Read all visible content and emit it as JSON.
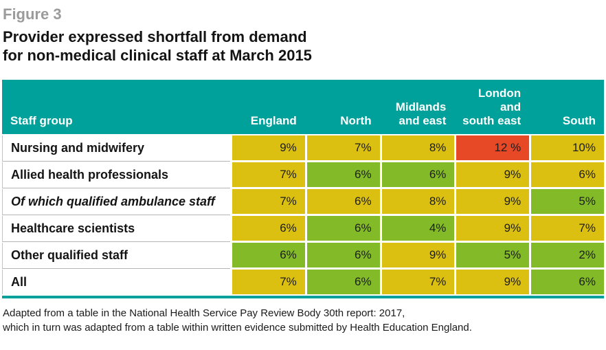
{
  "figure_label": "Figure 3",
  "title": {
    "line1": "Provider expressed shortfall from demand",
    "line2": "for non-medical clinical staff at March 2015"
  },
  "palette": {
    "teal": "#00A19A",
    "yellow": "#DBC011",
    "green": "#82BB27",
    "red": "#E74826",
    "header_text": "#FFFFFF",
    "figure_label_gray": "#9B9B9B"
  },
  "table": {
    "header": {
      "staff_group": "Staff group",
      "columns": [
        "England",
        "North",
        "Midlands\nand east",
        "London\nand\nsouth east",
        "South"
      ]
    },
    "rows": [
      {
        "label": "Nursing and midwifery",
        "italic": false,
        "cells": [
          {
            "value": "9%",
            "color": "yellow"
          },
          {
            "value": "7%",
            "color": "yellow"
          },
          {
            "value": "8%",
            "color": "yellow"
          },
          {
            "value": "12 %",
            "color": "red"
          },
          {
            "value": "10%",
            "color": "yellow"
          }
        ]
      },
      {
        "label": "Allied health professionals",
        "italic": false,
        "cells": [
          {
            "value": "7%",
            "color": "yellow"
          },
          {
            "value": "6%",
            "color": "green"
          },
          {
            "value": "6%",
            "color": "green"
          },
          {
            "value": "9%",
            "color": "yellow"
          },
          {
            "value": "6%",
            "color": "yellow"
          }
        ]
      },
      {
        "label": "Of which qualified ambulance staff",
        "italic": true,
        "cells": [
          {
            "value": "7%",
            "color": "yellow"
          },
          {
            "value": "6%",
            "color": "yellow"
          },
          {
            "value": "8%",
            "color": "yellow"
          },
          {
            "value": "9%",
            "color": "yellow"
          },
          {
            "value": "5%",
            "color": "green"
          }
        ]
      },
      {
        "label": "Healthcare scientists",
        "italic": false,
        "cells": [
          {
            "value": "6%",
            "color": "yellow"
          },
          {
            "value": "6%",
            "color": "green"
          },
          {
            "value": "4%",
            "color": "green"
          },
          {
            "value": "9%",
            "color": "yellow"
          },
          {
            "value": "7%",
            "color": "yellow"
          }
        ]
      },
      {
        "label": "Other qualified staff",
        "italic": false,
        "cells": [
          {
            "value": "6%",
            "color": "green"
          },
          {
            "value": "6%",
            "color": "green"
          },
          {
            "value": "9%",
            "color": "yellow"
          },
          {
            "value": "5%",
            "color": "green"
          },
          {
            "value": "2%",
            "color": "green"
          }
        ]
      },
      {
        "label": "All",
        "italic": false,
        "cells": [
          {
            "value": "7%",
            "color": "yellow"
          },
          {
            "value": "6%",
            "color": "green"
          },
          {
            "value": "7%",
            "color": "yellow"
          },
          {
            "value": "9%",
            "color": "yellow"
          },
          {
            "value": "6%",
            "color": "green"
          }
        ]
      }
    ]
  },
  "footnote": {
    "line1": "Adapted from a table in the National Health Service Pay Review Body 30th report: 2017,",
    "line2": "which in turn was adapted from a table within written evidence submitted by Health Education England."
  },
  "chart_data": {
    "type": "table",
    "title": "Provider expressed shortfall from demand for non-medical clinical staff at March 2015",
    "units": "%",
    "columns": [
      "Staff group",
      "England",
      "North",
      "Midlands and east",
      "London and south east",
      "South"
    ],
    "rows": [
      [
        "Nursing and midwifery",
        9,
        7,
        8,
        12,
        10
      ],
      [
        "Allied health professionals",
        7,
        6,
        6,
        9,
        6
      ],
      [
        "Of which qualified ambulance staff",
        7,
        6,
        8,
        9,
        5
      ],
      [
        "Healthcare scientists",
        6,
        6,
        4,
        9,
        7
      ],
      [
        "Other qualified staff",
        6,
        6,
        9,
        5,
        2
      ],
      [
        "All",
        7,
        6,
        7,
        9,
        6
      ]
    ],
    "cell_highlight_colors": [
      [
        "yellow",
        "yellow",
        "yellow",
        "red",
        "yellow"
      ],
      [
        "yellow",
        "green",
        "green",
        "yellow",
        "yellow"
      ],
      [
        "yellow",
        "yellow",
        "yellow",
        "yellow",
        "green"
      ],
      [
        "yellow",
        "green",
        "green",
        "yellow",
        "yellow"
      ],
      [
        "green",
        "green",
        "yellow",
        "green",
        "green"
      ],
      [
        "yellow",
        "green",
        "yellow",
        "yellow",
        "green"
      ]
    ]
  }
}
